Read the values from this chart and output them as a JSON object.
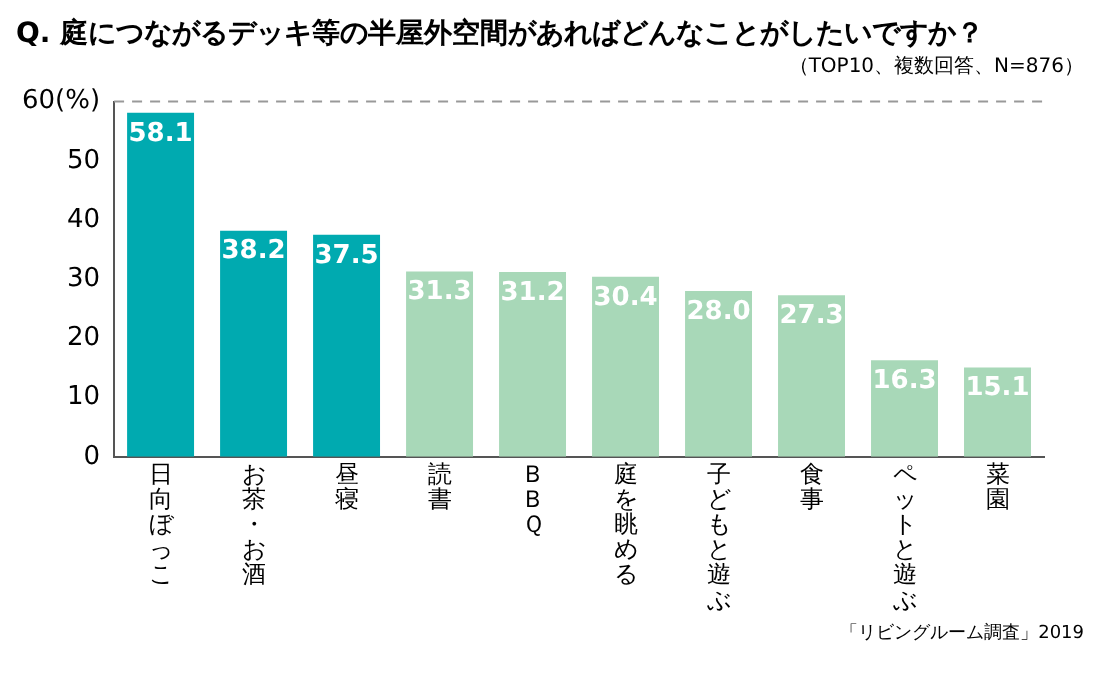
{
  "chart_data": {
    "type": "bar",
    "title": "Q. 庭につながるデッキ等の半屋外空間があればどんなことがしたいですか？",
    "subtitle": "（TOP10、複数回答、N=876）",
    "categories": [
      "日向ぼっこ",
      "お茶・お酒",
      "昼寝",
      "読書",
      "ＢＢＱ",
      "庭を眺める",
      "子どもと遊ぶ",
      "食事",
      "ペットと遊ぶ",
      "菜園"
    ],
    "values": [
      58.1,
      38.2,
      37.5,
      31.3,
      31.2,
      30.4,
      28.0,
      27.3,
      16.3,
      15.1
    ],
    "value_labels": [
      "58.1",
      "38.2",
      "37.5",
      "31.3",
      "31.2",
      "30.4",
      "28.0",
      "27.3",
      "16.3",
      "15.1"
    ],
    "colors": [
      "#00aab0",
      "#00aab0",
      "#00aab0",
      "#a8d8b8",
      "#a8d8b8",
      "#a8d8b8",
      "#a8d8b8",
      "#a8d8b8",
      "#a8d8b8",
      "#a8d8b8"
    ],
    "ylim": [
      0,
      60
    ],
    "yticks": [
      0,
      10,
      20,
      30,
      40,
      50,
      {
        "value": 60,
        "label": "60(%)"
      }
    ],
    "grid": false,
    "ref_lines": [
      {
        "axis": "y",
        "value": 60,
        "color": "#999999",
        "line_style": "dashed"
      }
    ],
    "annotations": [
      "「リビングルーム調査」2019"
    ]
  }
}
